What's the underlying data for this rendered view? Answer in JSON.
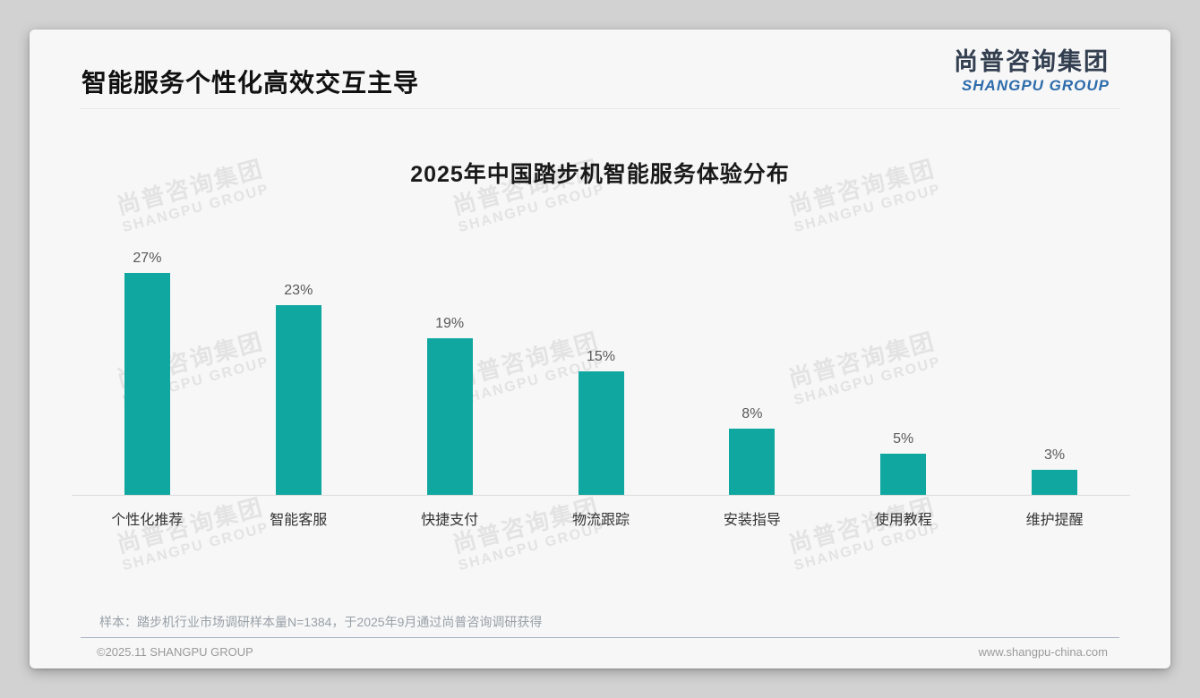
{
  "page": {
    "title": "智能服务个性化高效交互主导"
  },
  "logo": {
    "cn": "尚普咨询集团",
    "en": "SHANGPU GROUP"
  },
  "watermark": {
    "cn": "尚普咨询集团",
    "en": "SHANGPU GROUP"
  },
  "chart_data": {
    "type": "bar",
    "title": "2025年中国踏步机智能服务体验分布",
    "categories": [
      "个性化推荐",
      "智能客服",
      "快捷支付",
      "物流跟踪",
      "安装指导",
      "使用教程",
      "维护提醒"
    ],
    "values": [
      27,
      23,
      19,
      15,
      8,
      5,
      3
    ],
    "labels": [
      "27%",
      "23%",
      "19%",
      "15%",
      "8%",
      "5%",
      "3%"
    ],
    "unit": "%",
    "ylim": [
      0,
      30
    ],
    "grid": false,
    "legend": "none",
    "xlabel": "",
    "ylabel": ""
  },
  "note": "样本：踏步机行业市场调研样本量N=1384，于2025年9月通过尚普咨询调研获得",
  "footer": {
    "left": "©2025.11 SHANGPU GROUP",
    "right": "www.shangpu-china.com"
  },
  "colors": {
    "bar": "#0FA7A0",
    "logo_cn": "#333F50",
    "logo_en": "#2D6CAB",
    "value_label": "#595959",
    "category_label": "#333333",
    "axis_line": "#DCDCDC",
    "footer_divider": "#A6B2C1",
    "card_background": "#F7F7F7",
    "page_background": "#D2D2D2"
  }
}
